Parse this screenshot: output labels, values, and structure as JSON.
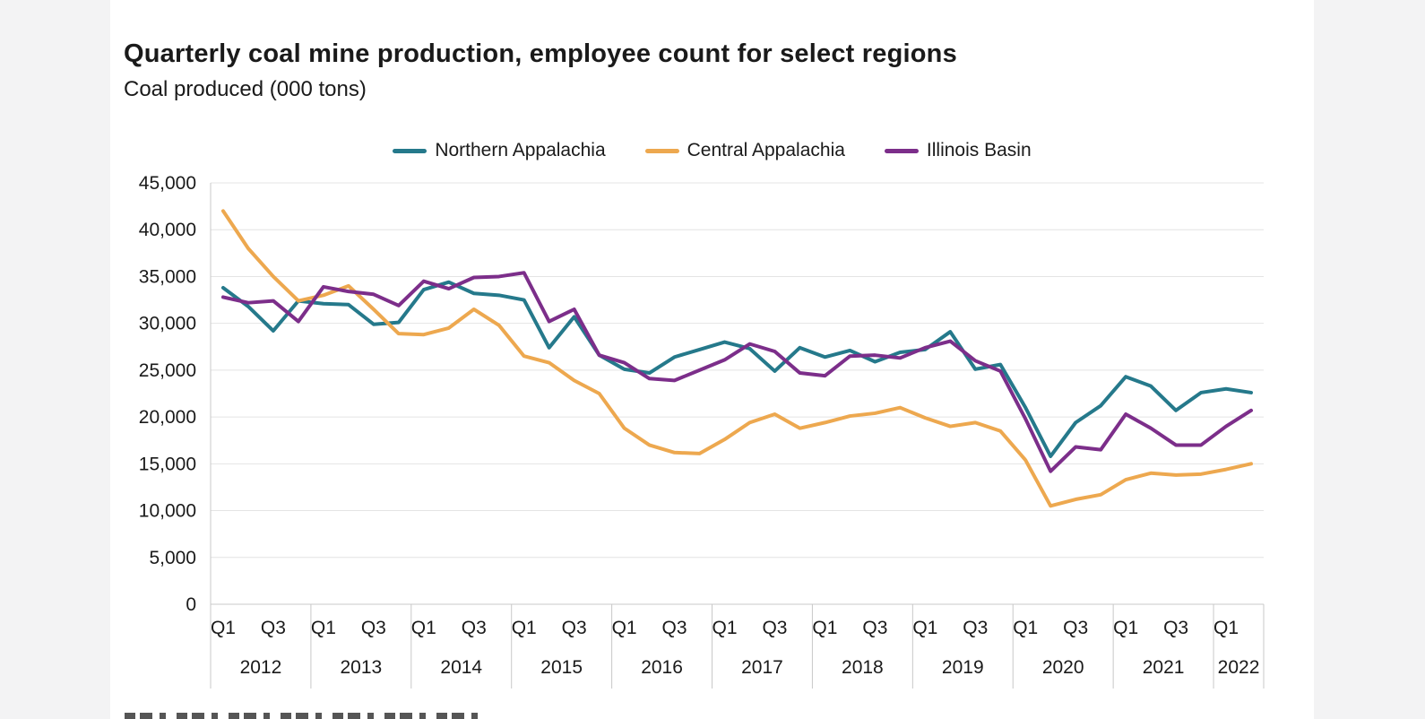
{
  "chart_data": {
    "type": "line",
    "title": "Quarterly coal mine production, employee count for select regions",
    "subtitle": "Coal produced (000 tons)",
    "ylabel": "Coal produced (000 tons)",
    "ylim": [
      0,
      45000
    ],
    "ytick_step": 5000,
    "grid": "horizontal",
    "legend_position": "top",
    "x_start": "2012-Q1",
    "x_end": "2022-Q2",
    "n_points": 42,
    "quarters_per_year": 4,
    "quarter_tick_labels": [
      "Q1",
      "Q3"
    ],
    "quarter_slots": [
      0,
      2
    ],
    "years": [
      "2012",
      "2013",
      "2014",
      "2015",
      "2016",
      "2017",
      "2018",
      "2019",
      "2020",
      "2021",
      "2022"
    ],
    "axis_color": "#c8c8c8",
    "gridline_color": "#e4e4e4",
    "series": [
      {
        "name": "Northern Appalachia",
        "color": "#25798b",
        "values": [
          33800,
          31800,
          29200,
          32400,
          32100,
          32000,
          29900,
          30100,
          33600,
          34400,
          33200,
          33000,
          32500,
          27400,
          30700,
          26600,
          25100,
          24700,
          26400,
          27200,
          28000,
          27300,
          24900,
          27400,
          26400,
          27100,
          25900,
          26900,
          27200,
          29100,
          25100,
          25600,
          21000,
          15800,
          19400,
          21200,
          24300,
          23300,
          20700,
          22600,
          23000,
          22600
        ]
      },
      {
        "name": "Central Appalachia",
        "color": "#eda84f",
        "values": [
          42000,
          38000,
          35000,
          32400,
          33000,
          34000,
          31500,
          28900,
          28800,
          29500,
          31500,
          29800,
          26500,
          25800,
          23900,
          22500,
          18800,
          17000,
          16200,
          16100,
          17600,
          19400,
          20300,
          18800,
          19400,
          20100,
          20400,
          21000,
          19900,
          19000,
          19400,
          18500,
          15400,
          10500,
          11200,
          11700,
          13300,
          14000,
          13800,
          13900,
          14400,
          15000
        ]
      },
      {
        "name": "Illinois Basin",
        "color": "#7c2e8a",
        "values": [
          32800,
          32200,
          32400,
          30200,
          33900,
          33400,
          33100,
          31900,
          34500,
          33700,
          34900,
          35000,
          35400,
          30200,
          31500,
          26600,
          25800,
          24100,
          23900,
          25000,
          26100,
          27800,
          27000,
          24700,
          24400,
          26500,
          26600,
          26300,
          27400,
          28100,
          26000,
          24900,
          19800,
          14200,
          16800,
          16500,
          20300,
          18800,
          17000,
          17000,
          19000,
          20700
        ]
      }
    ]
  }
}
